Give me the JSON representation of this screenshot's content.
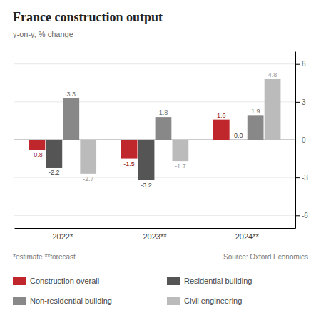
{
  "chart_data": {
    "type": "bar",
    "title": "France construction output",
    "subtitle": "y-on-y, % change",
    "annotations": [
      "*estimate  **forecast",
      "Source: Oxford Economics"
    ],
    "categories": [
      "2022*",
      "2023**",
      "2024**"
    ],
    "series": [
      {
        "name": "Construction overall",
        "color": "#c0272d",
        "values": [
          -0.8,
          -1.5,
          1.6
        ]
      },
      {
        "name": "Residential building",
        "color": "#555555",
        "values": [
          -2.2,
          -3.2,
          0.0
        ],
        "value_labels": [
          "-2.2",
          "-3.2",
          "0.0"
        ]
      },
      {
        "name": "Non-residential building",
        "color": "#888888",
        "values": [
          3.3,
          1.8,
          1.9
        ]
      },
      {
        "name": "Civil engineering",
        "color": "#bbbbbb",
        "values": [
          -2.7,
          -1.7,
          4.8
        ]
      }
    ],
    "ylim": [
      -7,
      7
    ],
    "yticks": [
      -6,
      -3,
      0,
      3,
      6
    ],
    "grid": true,
    "legend": "bottom",
    "data_labels": true
  }
}
